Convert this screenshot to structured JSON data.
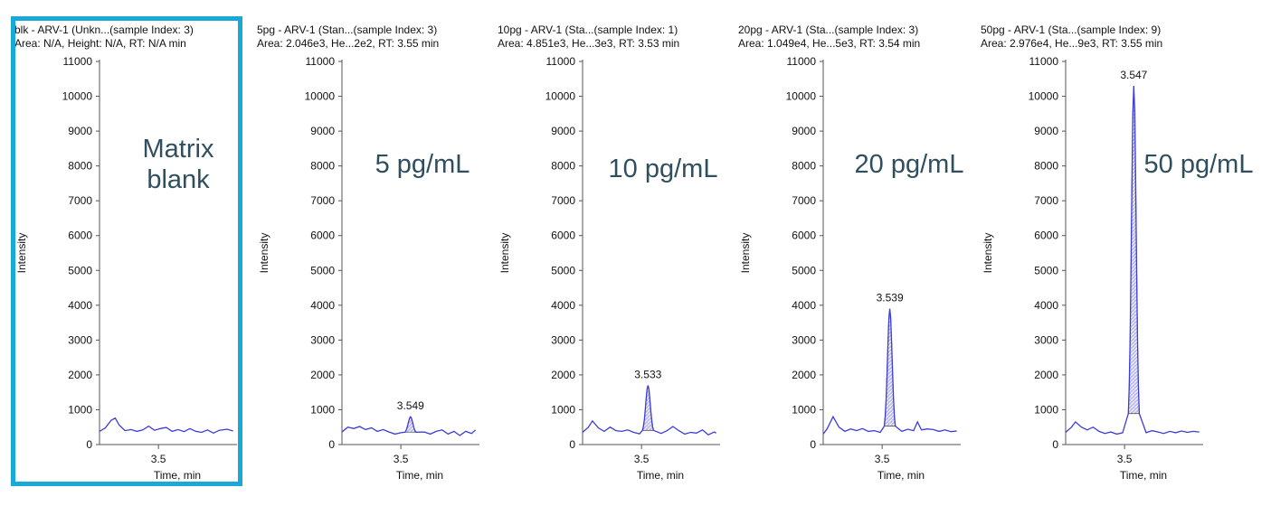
{
  "colors": {
    "highlight": "#19a9d9",
    "trace": "#3c3cd6",
    "peak_fill": "#bbbbee",
    "axis": "#555555",
    "label": "#2f4f5f"
  },
  "chart_data": [
    {
      "type": "line",
      "title": "blk - ARV-1 (Unkn...(sample Index: 3)",
      "subtitle": "Area: N/A, Height: N/A, RT: N/A min",
      "annotation": "Matrix blank",
      "xlabel": "Time, min",
      "ylabel": "Intensity",
      "ylim": [
        0,
        11000
      ],
      "xlim": [
        3.2,
        3.9
      ],
      "yticks": [
        "0",
        "1000",
        "2000",
        "3000",
        "4000",
        "5000",
        "6000",
        "7000",
        "8000",
        "9000",
        "10000",
        "11000"
      ],
      "xticks": [
        "3.5"
      ],
      "peak_label": null,
      "peak_rt": null,
      "peak_height": null,
      "highlighted": true,
      "baseline": [
        [
          3.2,
          380
        ],
        [
          3.23,
          480
        ],
        [
          3.26,
          700
        ],
        [
          3.28,
          760
        ],
        [
          3.3,
          560
        ],
        [
          3.33,
          400
        ],
        [
          3.36,
          430
        ],
        [
          3.39,
          380
        ],
        [
          3.42,
          420
        ],
        [
          3.45,
          530
        ],
        [
          3.48,
          410
        ],
        [
          3.51,
          460
        ],
        [
          3.54,
          490
        ],
        [
          3.57,
          380
        ],
        [
          3.6,
          430
        ],
        [
          3.63,
          370
        ],
        [
          3.66,
          460
        ],
        [
          3.69,
          380
        ],
        [
          3.72,
          350
        ],
        [
          3.75,
          420
        ],
        [
          3.78,
          330
        ],
        [
          3.81,
          410
        ],
        [
          3.85,
          440
        ],
        [
          3.88,
          390
        ]
      ]
    },
    {
      "type": "line",
      "title": "5pg - ARV-1 (Stan...(sample Index: 3)",
      "subtitle": "Area: 2.046e3, He...2e2, RT: 3.55 min",
      "annotation": "5 pg/mL",
      "xlabel": "Time, min",
      "ylabel": "Intensity",
      "ylim": [
        0,
        11000
      ],
      "xlim": [
        3.2,
        3.9
      ],
      "yticks": [
        "0",
        "1000",
        "2000",
        "3000",
        "4000",
        "5000",
        "6000",
        "7000",
        "8000",
        "9000",
        "10000",
        "11000"
      ],
      "xticks": [
        "3.5"
      ],
      "peak_label": "3.549",
      "peak_rt": 3.549,
      "peak_height": 800,
      "highlighted": false,
      "baseline": [
        [
          3.2,
          360
        ],
        [
          3.23,
          500
        ],
        [
          3.26,
          460
        ],
        [
          3.29,
          520
        ],
        [
          3.32,
          430
        ],
        [
          3.35,
          480
        ],
        [
          3.38,
          380
        ],
        [
          3.41,
          430
        ],
        [
          3.44,
          360
        ],
        [
          3.47,
          300
        ],
        [
          3.5,
          340
        ],
        [
          3.53,
          320
        ],
        [
          3.62,
          360
        ],
        [
          3.65,
          300
        ],
        [
          3.68,
          380
        ],
        [
          3.71,
          420
        ],
        [
          3.74,
          300
        ],
        [
          3.77,
          380
        ],
        [
          3.8,
          260
        ],
        [
          3.83,
          380
        ],
        [
          3.86,
          320
        ],
        [
          3.88,
          420
        ]
      ]
    },
    {
      "type": "line",
      "title": "10pg - ARV-1 (Sta...(sample Index: 1)",
      "subtitle": "Area: 4.851e3, He...3e3, RT: 3.53 min",
      "annotation": "10 pg/mL",
      "xlabel": "Time, min",
      "ylabel": "Intensity",
      "ylim": [
        0,
        11000
      ],
      "xlim": [
        3.2,
        3.9
      ],
      "yticks": [
        "0",
        "1000",
        "2000",
        "3000",
        "4000",
        "5000",
        "6000",
        "7000",
        "8000",
        "9000",
        "10000",
        "11000"
      ],
      "xticks": [
        "3.5"
      ],
      "peak_label": "3.533",
      "peak_rt": 3.533,
      "peak_height": 1700,
      "highlighted": false,
      "baseline": [
        [
          3.2,
          350
        ],
        [
          3.23,
          500
        ],
        [
          3.25,
          680
        ],
        [
          3.28,
          480
        ],
        [
          3.31,
          380
        ],
        [
          3.34,
          500
        ],
        [
          3.37,
          400
        ],
        [
          3.4,
          380
        ],
        [
          3.43,
          420
        ],
        [
          3.46,
          350
        ],
        [
          3.49,
          310
        ],
        [
          3.6,
          320
        ],
        [
          3.63,
          400
        ],
        [
          3.66,
          520
        ],
        [
          3.69,
          400
        ],
        [
          3.72,
          300
        ],
        [
          3.75,
          350
        ],
        [
          3.78,
          330
        ],
        [
          3.81,
          420
        ],
        [
          3.84,
          280
        ],
        [
          3.87,
          360
        ],
        [
          3.88,
          330
        ]
      ]
    },
    {
      "type": "line",
      "title": "20pg - ARV-1 (Sta...(sample Index: 3)",
      "subtitle": "Area: 1.049e4, He...5e3, RT: 3.54 min",
      "annotation": "20 pg/mL",
      "xlabel": "Time, min",
      "ylabel": "Intensity",
      "ylim": [
        0,
        11000
      ],
      "xlim": [
        3.2,
        3.9
      ],
      "yticks": [
        "0",
        "1000",
        "2000",
        "3000",
        "4000",
        "5000",
        "6000",
        "7000",
        "8000",
        "9000",
        "10000",
        "11000"
      ],
      "xticks": [
        "3.5"
      ],
      "peak_label": "3.539",
      "peak_rt": 3.539,
      "peak_height": 3900,
      "highlighted": false,
      "baseline": [
        [
          3.2,
          300
        ],
        [
          3.22,
          450
        ],
        [
          3.25,
          800
        ],
        [
          3.28,
          500
        ],
        [
          3.31,
          380
        ],
        [
          3.34,
          450
        ],
        [
          3.37,
          400
        ],
        [
          3.4,
          460
        ],
        [
          3.43,
          380
        ],
        [
          3.46,
          400
        ],
        [
          3.49,
          350
        ],
        [
          3.6,
          380
        ],
        [
          3.63,
          440
        ],
        [
          3.66,
          400
        ],
        [
          3.68,
          650
        ],
        [
          3.7,
          420
        ],
        [
          3.73,
          450
        ],
        [
          3.76,
          430
        ],
        [
          3.79,
          380
        ],
        [
          3.82,
          420
        ],
        [
          3.85,
          370
        ],
        [
          3.88,
          390
        ]
      ]
    },
    {
      "type": "line",
      "title": "50pg - ARV-1 (Sta...(sample Index: 9)",
      "subtitle": "Area: 2.976e4, He...9e3, RT: 3.55 min",
      "annotation": "50 pg/mL",
      "xlabel": "Time, min",
      "ylabel": "Intensity",
      "ylim": [
        0,
        11000
      ],
      "xlim": [
        3.2,
        3.9
      ],
      "yticks": [
        "0",
        "1000",
        "2000",
        "3000",
        "4000",
        "5000",
        "6000",
        "7000",
        "8000",
        "9000",
        "10000",
        "11000"
      ],
      "xticks": [
        "3.5"
      ],
      "peak_label": "3.547",
      "peak_rt": 3.547,
      "peak_height": 10300,
      "highlighted": false,
      "baseline": [
        [
          3.2,
          350
        ],
        [
          3.23,
          500
        ],
        [
          3.25,
          650
        ],
        [
          3.28,
          500
        ],
        [
          3.31,
          420
        ],
        [
          3.34,
          500
        ],
        [
          3.37,
          380
        ],
        [
          3.4,
          320
        ],
        [
          3.43,
          360
        ],
        [
          3.46,
          300
        ],
        [
          3.49,
          340
        ],
        [
          3.61,
          340
        ],
        [
          3.64,
          400
        ],
        [
          3.67,
          360
        ],
        [
          3.7,
          320
        ],
        [
          3.73,
          380
        ],
        [
          3.76,
          340
        ],
        [
          3.79,
          390
        ],
        [
          3.82,
          350
        ],
        [
          3.85,
          380
        ],
        [
          3.88,
          360
        ]
      ]
    }
  ]
}
